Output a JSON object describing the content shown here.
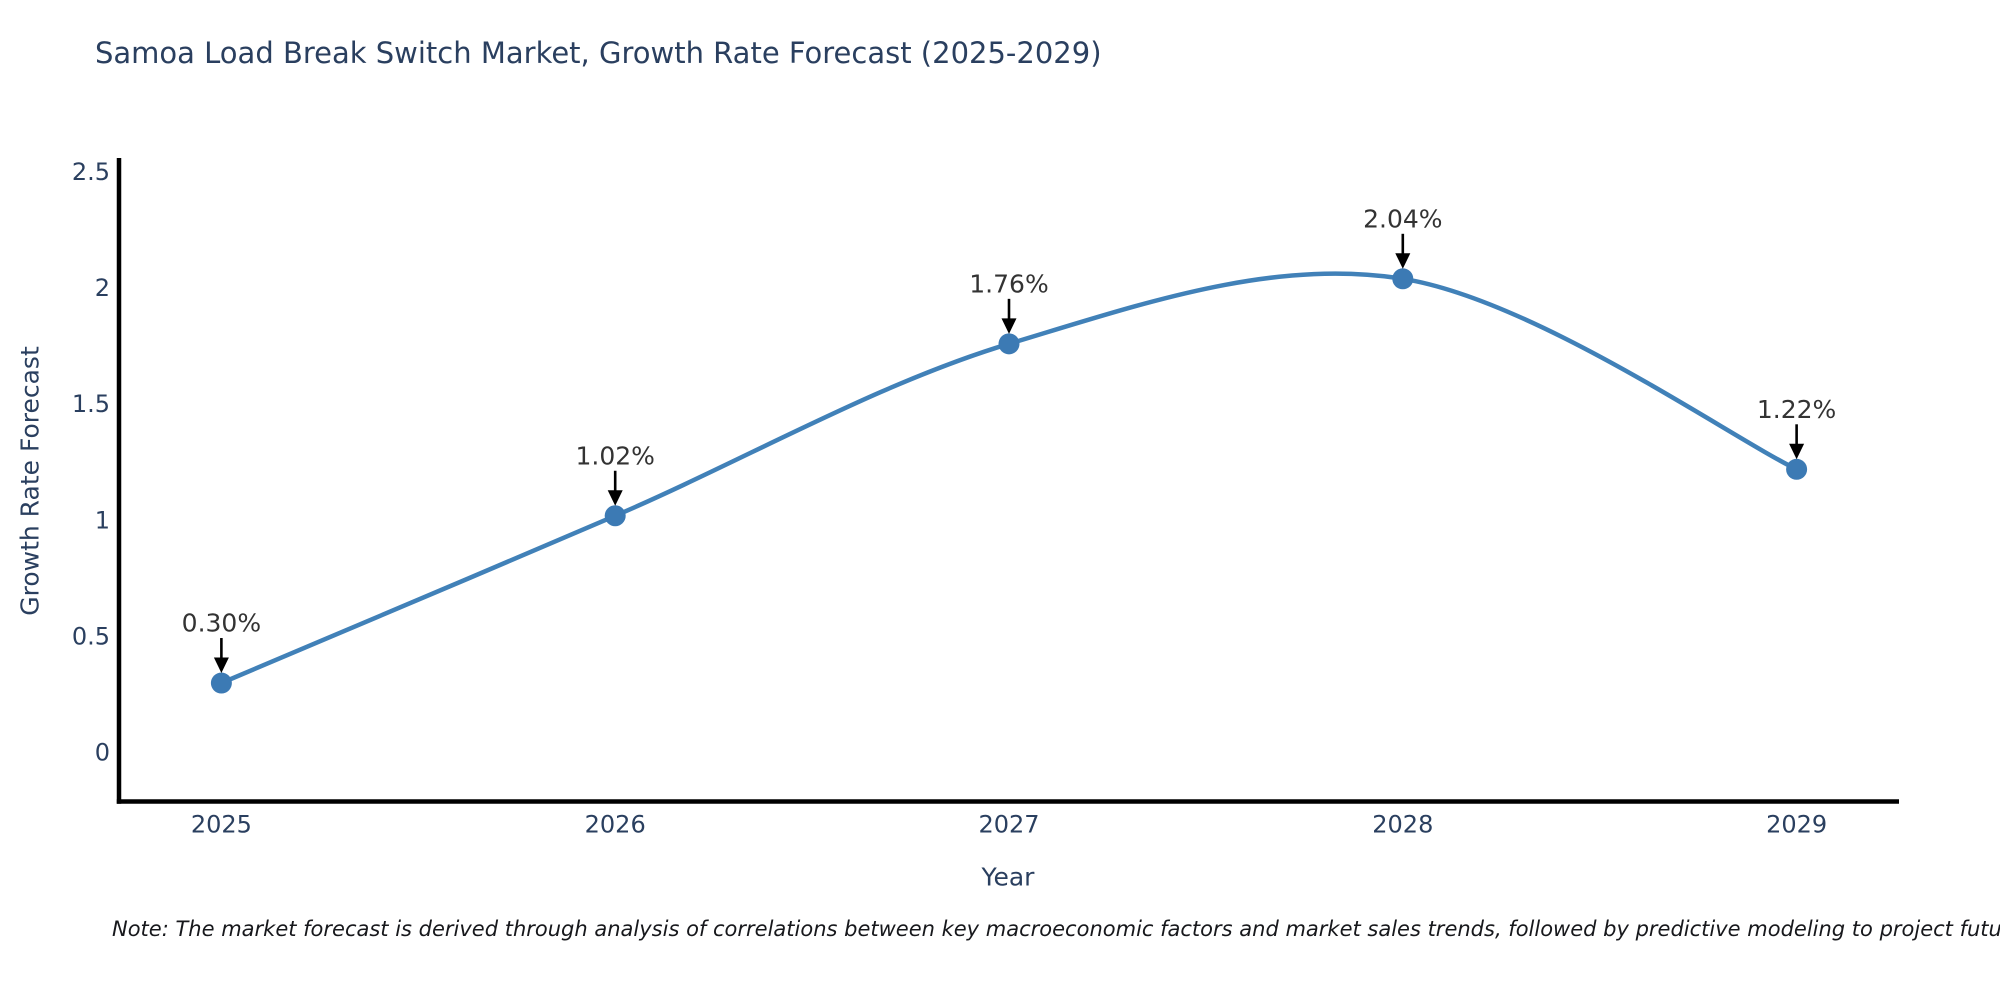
{
  "title": "Samoa Load Break Switch Market, Growth Rate Forecast (2025-2029)",
  "note": "Note: The market forecast is derived through analysis of correlations between key macroeconomic factors and market sales trends, followed by predictive modeling to project future sales",
  "chart_data": {
    "type": "line",
    "line_shape": "spline",
    "title": "Samoa Load Break Switch Market, Growth Rate Forecast (2025-2029)",
    "xlabel": "Year",
    "ylabel": "Growth Rate Forecast",
    "x": [
      2025,
      2026,
      2027,
      2028,
      2029
    ],
    "y": [
      0.3,
      1.02,
      1.76,
      2.04,
      1.22
    ],
    "point_labels": [
      "0.30%",
      "1.02%",
      "1.76%",
      "2.04%",
      "1.22%"
    ],
    "x_tick_labels": [
      "2025",
      "2026",
      "2027",
      "2028",
      "2029"
    ],
    "x_tick_values": [
      2025,
      2026,
      2027,
      2028,
      2029
    ],
    "y_tick_labels": [
      "0",
      "0.5",
      "1",
      "1.5",
      "2",
      "2.5"
    ],
    "y_tick_values": [
      0,
      0.5,
      1,
      1.5,
      2,
      2.5
    ],
    "xlim": [
      2024.74,
      2029.26
    ],
    "ylim": [
      -0.21,
      2.56
    ],
    "grid": false,
    "legend": "none",
    "annotations_have_arrows": true,
    "colors": {
      "line": "#4181b8",
      "marker": "#3c7ab4",
      "axis": "#000000",
      "tick_text": "#2a3f5f",
      "annotation_text": "#333333",
      "arrow": "#000000"
    }
  }
}
